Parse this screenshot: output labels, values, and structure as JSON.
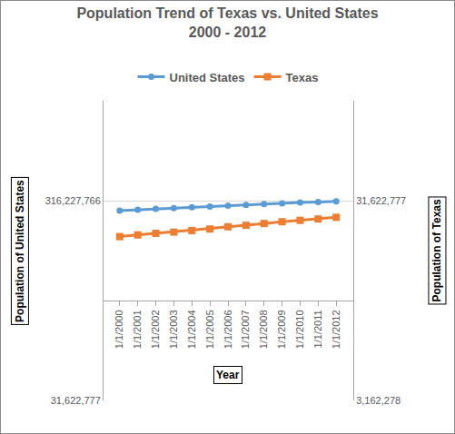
{
  "chart_data": {
    "type": "line",
    "title": "Population Trend of Texas vs. United States",
    "subtitle": "2000 - 2012",
    "x_label": "Year",
    "y_label": "Population of United States",
    "y2_label": "Population of Texas",
    "categories": [
      "1/1/2000",
      "1/1/2001",
      "1/1/2002",
      "1/1/2003",
      "1/1/2004",
      "1/1/2005",
      "1/1/2006",
      "1/1/2007",
      "1/1/2008",
      "1/1/2009",
      "1/1/2010",
      "1/1/2011",
      "1/1/2012"
    ],
    "series": [
      {
        "name": "United States",
        "color": "#5b9bd5",
        "marker": "circle",
        "line_style": "solid",
        "values": [
          282200000,
          285000000,
          287600000,
          290100000,
          292800000,
          295500000,
          298400000,
          301200000,
          304100000,
          306800000,
          309300000,
          311600000,
          313900000
        ]
      },
      {
        "name": "Texas",
        "color": "#ed7d31",
        "marker": "square",
        "line_style": "solid",
        "axis": "y2",
        "values": [
          20900000,
          21300000,
          21700000,
          22000000,
          22400000,
          22800000,
          23400000,
          23800000,
          24300000,
          24800000,
          25200000,
          25600000,
          26100000
        ]
      }
    ],
    "log": "y",
    "ylim": [
      31622777,
      1000000000
    ],
    "yticks": [
      {
        "value": 31622777,
        "label": "31,622,777"
      },
      {
        "value": 316227766,
        "label": "316,227,766"
      }
    ],
    "y2lim": [
      3162278,
      100000000
    ],
    "y2ticks": [
      {
        "value": 3162278,
        "label": "3,162,278"
      },
      {
        "value": 31622777,
        "label": "31,622,777"
      }
    ],
    "grid": true,
    "legend": "top"
  }
}
